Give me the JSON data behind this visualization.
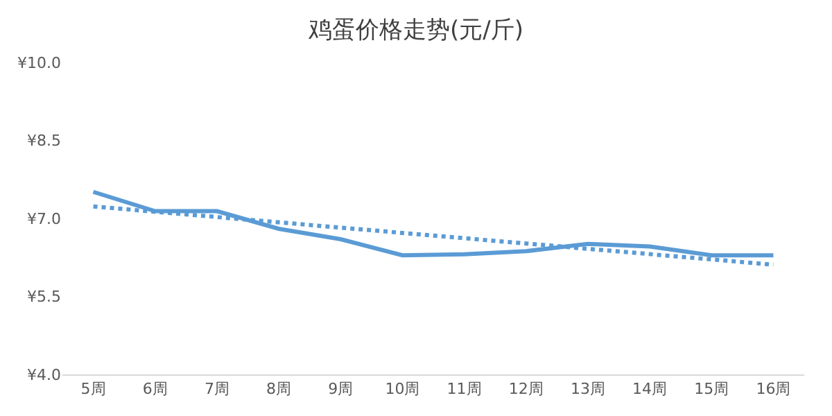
{
  "chart_data": {
    "type": "line",
    "title": "鸡蛋价格走势(元/斤)",
    "categories": [
      "5周",
      "6周",
      "7周",
      "8周",
      "9周",
      "10周",
      "11周",
      "12周",
      "13周",
      "14周",
      "15周",
      "16周"
    ],
    "series": [
      {
        "color": "#5b9bd5",
        "values": [
          7.51,
          7.14,
          7.14,
          6.8,
          6.6,
          6.29,
          6.31,
          6.37,
          6.51,
          6.46,
          6.29,
          6.29
        ],
        "line_style": "solid"
      },
      {
        "type": "line",
        "color": "#5b9bd5",
        "x": [
          "5周",
          "16周"
        ],
        "values": [
          7.23,
          6.11
        ],
        "line_style": "dotted"
      }
    ],
    "ylim": [
      4.0,
      10.0
    ],
    "yticks": [
      {
        "value": 4.0,
        "label": "¥4.0"
      },
      {
        "value": 5.5,
        "label": "¥5.5"
      },
      {
        "value": 7.0,
        "label": "¥7.0"
      },
      {
        "value": 8.5,
        "label": "¥8.5"
      },
      {
        "value": 10.0,
        "label": "¥10.0"
      }
    ],
    "grid": false,
    "marker": "none"
  }
}
